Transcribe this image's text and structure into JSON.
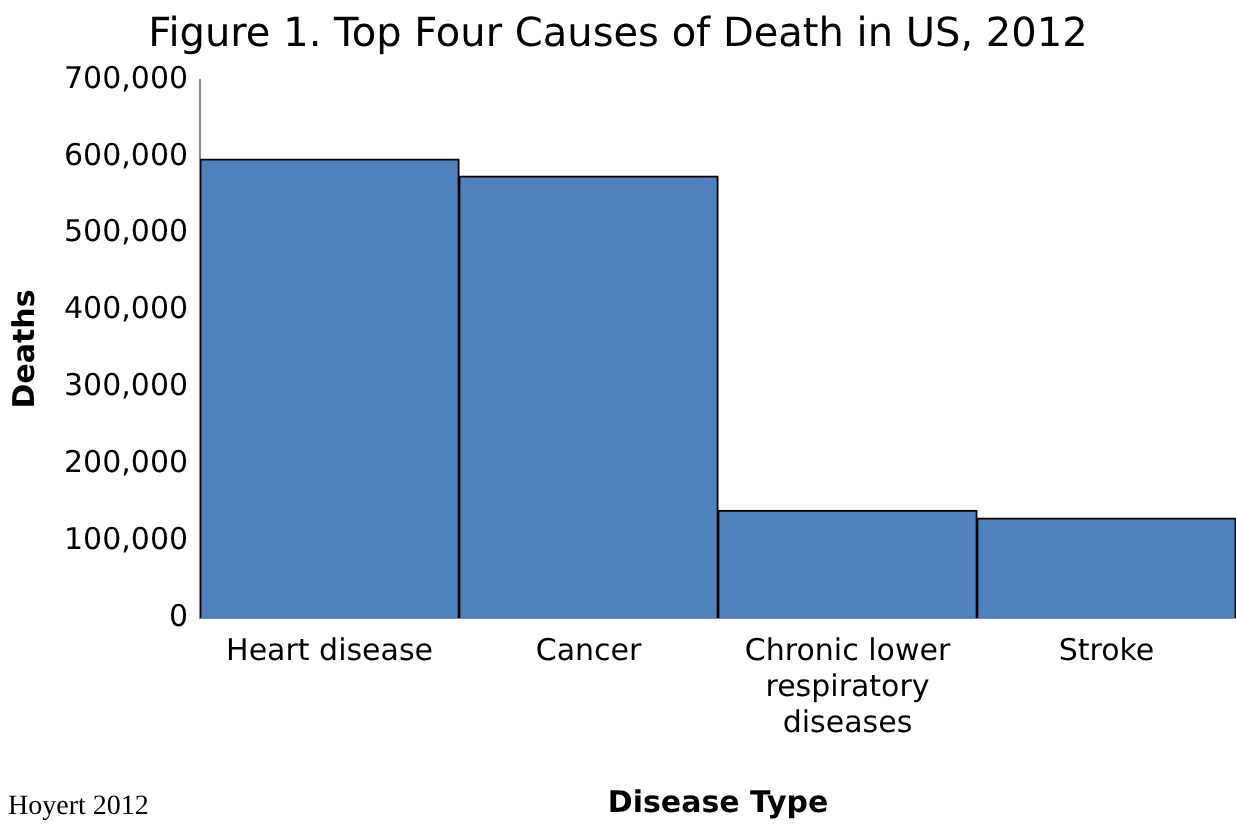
{
  "chart_data": {
    "type": "bar",
    "title": "Figure 1. Top Four Causes of Death in US, 2012",
    "xlabel": "Disease Type",
    "ylabel": "Deaths",
    "categories": [
      "Heart disease",
      "Cancer",
      "Chronic lower respiratory diseases",
      "Stroke"
    ],
    "values": [
      597000,
      575000,
      140000,
      130000
    ],
    "color": "#4f81bd",
    "ylim": [
      0,
      700000
    ],
    "yticks": [
      {
        "value": 0,
        "label": "0"
      },
      {
        "value": 100000,
        "label": "100,000"
      },
      {
        "value": 200000,
        "label": "200,000"
      },
      {
        "value": 300000,
        "label": "300,000"
      },
      {
        "value": 400000,
        "label": "400,000"
      },
      {
        "value": 500000,
        "label": "500,000"
      },
      {
        "value": 600000,
        "label": "600,000"
      },
      {
        "value": 700000,
        "label": "700,000"
      }
    ],
    "grid": false,
    "legend": false,
    "annotations": [
      "Hoyert 2012"
    ]
  }
}
